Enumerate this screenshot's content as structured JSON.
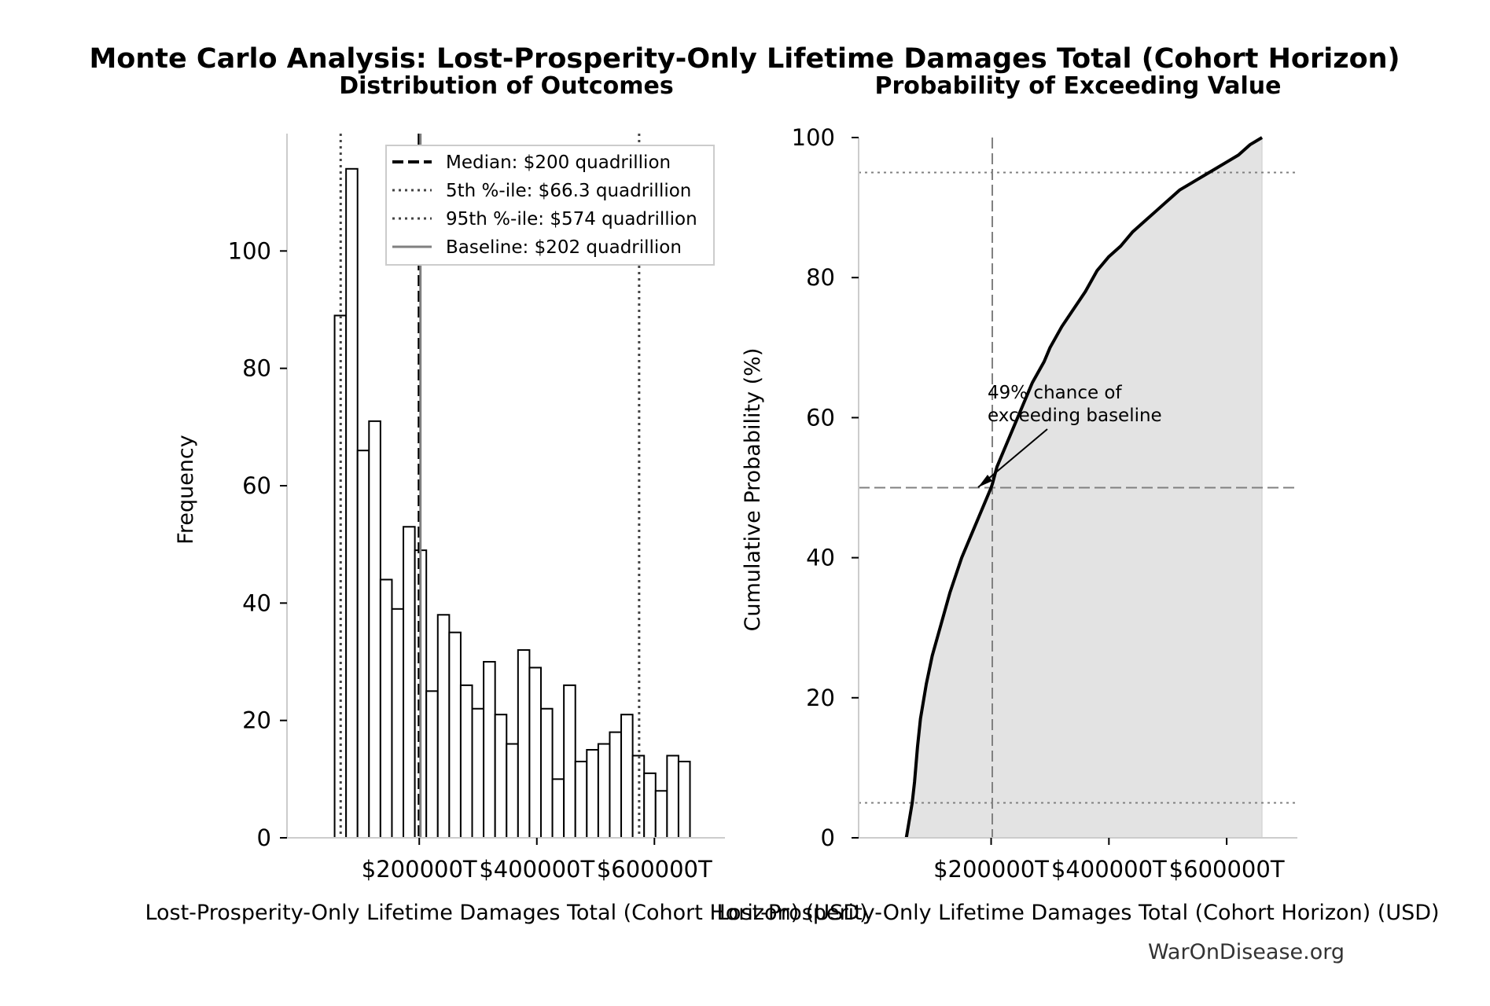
{
  "chart_data": [
    {
      "type": "histogram",
      "figure_title": "Monte Carlo Analysis: Lost-Prosperity-Only Lifetime Damages Total (Cohort Horizon)",
      "title": "Distribution of Outcomes",
      "xlabel": "Lost-Prosperity-Only Lifetime Damages Total (Cohort Horizon) (USD)",
      "ylabel": "Frequency",
      "xlim": [
        -25000,
        720000
      ],
      "ylim": [
        0,
        120
      ],
      "xticks": [
        200000,
        400000,
        600000
      ],
      "xtick_labels": [
        "$200000T",
        "$400000T",
        "$600000T"
      ],
      "yticks": [
        0,
        20,
        40,
        60,
        80,
        100
      ],
      "ytick_labels": [
        "0",
        "20",
        "40",
        "60",
        "80",
        "100"
      ],
      "bins": {
        "start": 56000,
        "width": 19500,
        "counts": [
          89,
          114,
          66,
          71,
          44,
          39,
          53,
          49,
          25,
          38,
          35,
          26,
          22,
          30,
          21,
          16,
          32,
          29,
          22,
          10,
          26,
          13,
          15,
          16,
          18,
          21,
          14,
          11,
          8,
          14,
          13
        ]
      },
      "reference_lines": [
        {
          "label": "Median: $200 quadrillion",
          "value": 200000,
          "style": "dashed",
          "color": "#000000"
        },
        {
          "label": "5th %-ile: $66.3 quadrillion",
          "value": 66300,
          "style": "dotted",
          "color": "#444444"
        },
        {
          "label": "95th %-ile: $574 quadrillion",
          "value": 574000,
          "style": "dotted",
          "color": "#444444"
        },
        {
          "label": "Baseline: $202 quadrillion",
          "value": 202000,
          "style": "solid",
          "color": "#808080"
        }
      ],
      "legend_position": "top-right",
      "grid": false
    },
    {
      "type": "line",
      "title": "Probability of Exceeding Value",
      "xlabel": "Lost-Prosperity-Only Lifetime Damages Total (Cohort Horizon) (USD)",
      "ylabel": "Cumulative Probability (%)",
      "xlim": [
        -25000,
        720000
      ],
      "ylim": [
        0,
        100
      ],
      "xticks": [
        200000,
        400000,
        600000
      ],
      "xtick_labels": [
        "$200000T",
        "$400000T",
        "$600000T"
      ],
      "yticks": [
        0,
        20,
        40,
        60,
        80,
        100
      ],
      "ytick_labels": [
        "0",
        "20",
        "40",
        "60",
        "80",
        "100"
      ],
      "x": [
        56000,
        60000,
        66000,
        70000,
        75000,
        80000,
        90000,
        100000,
        110000,
        120000,
        130000,
        140000,
        150000,
        160000,
        170000,
        180000,
        190000,
        200000,
        202000,
        210000,
        220000,
        230000,
        240000,
        250000,
        260000,
        270000,
        280000,
        290000,
        300000,
        320000,
        340000,
        360000,
        380000,
        400000,
        420000,
        440000,
        460000,
        480000,
        500000,
        520000,
        540000,
        560000,
        580000,
        600000,
        620000,
        640000,
        660000
      ],
      "y": [
        0,
        2,
        5,
        8,
        13,
        17,
        22,
        26,
        29,
        32,
        35,
        37.5,
        40,
        42,
        44,
        46,
        48,
        50,
        50.5,
        53,
        55,
        57,
        59,
        61,
        63,
        65,
        66.5,
        68,
        70,
        73,
        75.5,
        78,
        81,
        83,
        84.5,
        86.5,
        88,
        89.5,
        91,
        92.5,
        93.5,
        94.5,
        95.5,
        96.5,
        97.5,
        99,
        100
      ],
      "reference_lines": [
        {
          "axis": "x",
          "value": 202000,
          "style": "dashed",
          "color": "#808080"
        },
        {
          "axis": "y",
          "value": 50,
          "style": "dashed",
          "color": "#808080"
        },
        {
          "axis": "y",
          "value": 5,
          "style": "dotted",
          "color": "#808080"
        },
        {
          "axis": "y",
          "value": 95,
          "style": "dotted",
          "color": "#808080"
        }
      ],
      "annotation": {
        "text": [
          "49% chance of",
          "exceeding baseline"
        ],
        "point": [
          202000,
          50
        ]
      },
      "fill_color": "#e3e3e3",
      "grid": false
    }
  ],
  "watermark": "WarOnDisease.org"
}
